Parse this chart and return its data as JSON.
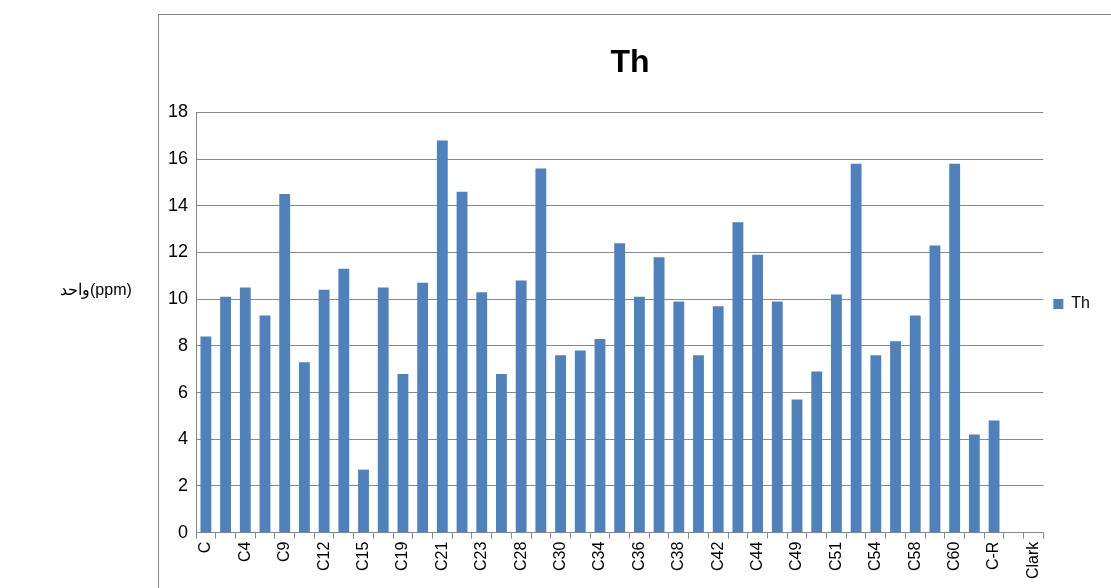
{
  "chart_data": {
    "type": "bar",
    "title": "Th",
    "ylabel": "واحد(ppm)",
    "categories": [
      "C",
      null,
      "C4",
      null,
      "C9",
      null,
      "C12",
      null,
      "C15",
      null,
      "C19",
      null,
      "C21",
      null,
      "C23",
      null,
      "C28",
      null,
      "C30",
      null,
      "C34",
      null,
      "C36",
      null,
      "C38",
      null,
      "C42",
      null,
      "C44",
      null,
      "C49",
      null,
      "C51",
      null,
      "C54",
      null,
      "C58",
      null,
      "C60",
      null,
      "C-R",
      null,
      "Clark"
    ],
    "series": [
      {
        "name": "Th",
        "color": "#4f81bd",
        "values": [
          8.4,
          10.1,
          10.5,
          9.3,
          14.5,
          7.3,
          10.4,
          11.3,
          2.7,
          10.5,
          6.8,
          10.7,
          16.8,
          14.6,
          10.3,
          6.8,
          10.8,
          15.6,
          7.6,
          7.8,
          8.3,
          12.4,
          10.1,
          11.8,
          9.9,
          7.6,
          9.7,
          13.3,
          11.9,
          9.9,
          5.7,
          6.9,
          10.2,
          15.8,
          7.6,
          8.2,
          9.3,
          12.3,
          15.8,
          4.2,
          4.8,
          null,
          null
        ]
      }
    ],
    "ylim": [
      0,
      18
    ],
    "yticks": [
      0,
      2,
      4,
      6,
      8,
      10,
      12,
      14,
      16,
      18
    ],
    "grid": "y",
    "legend": "right"
  }
}
